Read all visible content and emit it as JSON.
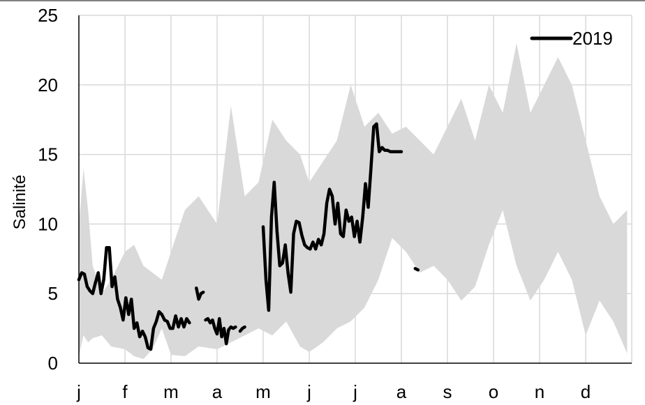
{
  "chart_data": {
    "type": "area",
    "xlabel": "",
    "ylabel": "Salinité",
    "ylim": [
      0,
      25
    ],
    "yticks": [
      0,
      5,
      10,
      15,
      20,
      25
    ],
    "categories": [
      "j",
      "f",
      "m",
      "a",
      "m",
      "j",
      "j",
      "a",
      "s",
      "o",
      "n",
      "d"
    ],
    "grid": true,
    "legend": {
      "position": "top-right",
      "entries": [
        "2019"
      ]
    },
    "colors": {
      "band": "#d9d9d9",
      "line": "#000000",
      "grid": "#d9d9d9"
    },
    "band": {
      "x_month": [
        0,
        0.1,
        0.2,
        0.3,
        0.5,
        0.7,
        1.0,
        1.2,
        1.4,
        1.6,
        1.8,
        2.0,
        2.3,
        2.6,
        3.0,
        3.3,
        3.6,
        3.9,
        4.2,
        4.5,
        4.8,
        5.0,
        5.3,
        5.6,
        5.9,
        6.2,
        6.5,
        6.8,
        7.1,
        7.4,
        7.7,
        8.0,
        8.3,
        8.6,
        8.9,
        9.2,
        9.5,
        9.8,
        10.1,
        10.4,
        10.7,
        11.0,
        11.3,
        11.6,
        11.9
      ],
      "upper": [
        10,
        14,
        11,
        7,
        5,
        6,
        8,
        8.5,
        7,
        6.5,
        6,
        8,
        11,
        12,
        10,
        18.5,
        12,
        13,
        17.5,
        16,
        15,
        13,
        14.5,
        16,
        20,
        17,
        18,
        16.5,
        17,
        16,
        15,
        17,
        19,
        16,
        20,
        18,
        23,
        18,
        20,
        22,
        20,
        16,
        12,
        10,
        11
      ],
      "lower": [
        0.5,
        2,
        1.5,
        1.8,
        2,
        1.2,
        1,
        0.5,
        0.3,
        1,
        2.5,
        0.6,
        0.5,
        1.2,
        1,
        1.5,
        2,
        2.5,
        2,
        3,
        1.2,
        0.8,
        1.5,
        2.5,
        3,
        4,
        6,
        9,
        8,
        6.5,
        7,
        6,
        4.5,
        5.5,
        8.5,
        11,
        7,
        4.5,
        6,
        8,
        6,
        2,
        4.5,
        3,
        0.7
      ]
    },
    "series": [
      {
        "name": "2019",
        "segments": [
          {
            "x_month": [
              0,
              0.06,
              0.12,
              0.18,
              0.24,
              0.3,
              0.36,
              0.42,
              0.48,
              0.54,
              0.6,
              0.66,
              0.72,
              0.78,
              0.84,
              0.9,
              0.96,
              1.02,
              1.08,
              1.14,
              1.2,
              1.26,
              1.32,
              1.38,
              1.44,
              1.5,
              1.56,
              1.62,
              1.68,
              1.74,
              1.8,
              1.86,
              1.92,
              1.98,
              2.04,
              2.1,
              2.16,
              2.22,
              2.28,
              2.34,
              2.4
            ],
            "y": [
              6,
              6.5,
              6.4,
              5.5,
              5.2,
              5,
              5.8,
              6.5,
              5,
              6,
              8.3,
              8.3,
              5.5,
              6.2,
              4.6,
              4,
              3.1,
              4.7,
              3.5,
              4.6,
              2.5,
              2.9,
              1.9,
              2.3,
              1.9,
              1.1,
              1.0,
              2.5,
              3,
              3.7,
              3.5,
              3.1,
              3.0,
              2.5,
              2.5,
              3.4,
              2.6,
              3.2,
              2.6,
              3.2,
              2.9
            ]
          },
          {
            "x_month": [
              2.55,
              2.6,
              2.65,
              2.7
            ],
            "y": [
              5.4,
              4.6,
              5.0,
              5.1
            ]
          },
          {
            "x_month": [
              2.75,
              2.8,
              2.85,
              2.9,
              2.95,
              3.0,
              3.05,
              3.1,
              3.15,
              3.2,
              3.25,
              3.3,
              3.35,
              3.4
            ],
            "y": [
              3.1,
              3.2,
              2.9,
              3.1,
              2.5,
              2.1,
              3.2,
              1.9,
              2.5,
              1.4,
              2.4,
              2.6,
              2.5,
              2.6
            ]
          },
          {
            "x_month": [
              3.5,
              3.55,
              3.6
            ],
            "y": [
              2.3,
              2.5,
              2.6
            ]
          },
          {
            "x_month": [
              4.0,
              4.06,
              4.12,
              4.18,
              4.24,
              4.3,
              4.36,
              4.42,
              4.48,
              4.54,
              4.6,
              4.66,
              4.72,
              4.78,
              4.84,
              4.9,
              4.96,
              5.02,
              5.08,
              5.14,
              5.2,
              5.26,
              5.32,
              5.38,
              5.44,
              5.5,
              5.56,
              5.62,
              5.68,
              5.74,
              5.8,
              5.86,
              5.92,
              5.98,
              6.04,
              6.1,
              6.16,
              6.22,
              6.28,
              6.34,
              6.4,
              6.46,
              6.52,
              6.58,
              6.64,
              6.7,
              6.76,
              6.82,
              6.88,
              6.94,
              7.0
            ],
            "y": [
              9.8,
              6,
              3.8,
              10.5,
              13,
              9.5,
              7,
              7.2,
              8.5,
              6.5,
              5.1,
              9.3,
              10.2,
              10.1,
              9.2,
              8.5,
              8.3,
              8.2,
              8.7,
              8.2,
              8.9,
              8.5,
              9.3,
              11.5,
              12.5,
              12,
              10,
              11.5,
              9.3,
              9.1,
              11.0,
              10.2,
              10.5,
              9.1,
              10.2,
              8.7,
              10.5,
              12.9,
              11.2,
              14,
              17,
              17.2,
              15.2,
              15.5,
              15.3,
              15.3,
              15.2,
              15.2,
              15.2,
              15.2,
              15.2
            ]
          },
          {
            "x_month": [
              7.3,
              7.36
            ],
            "y": [
              6.8,
              6.7
            ]
          }
        ]
      }
    ]
  }
}
